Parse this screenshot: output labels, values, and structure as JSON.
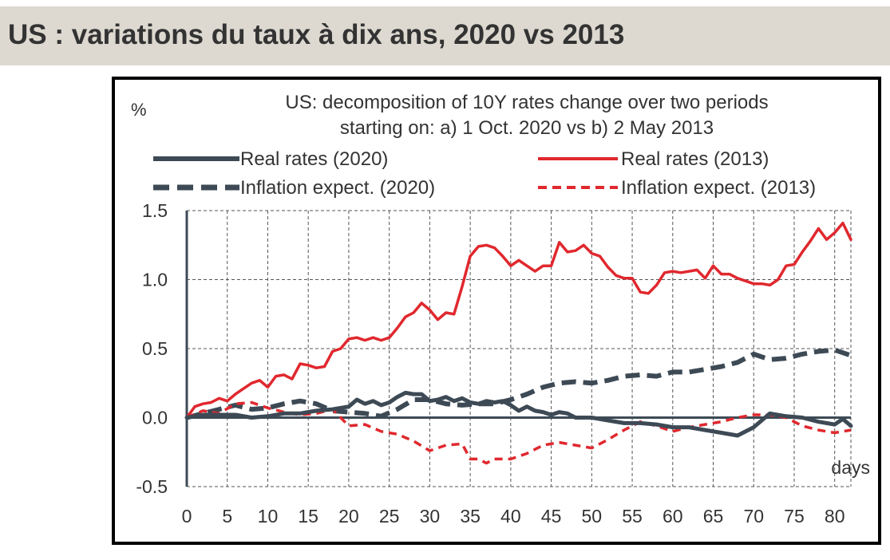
{
  "header": {
    "title": "US : variations du taux à dix ans, 2020 vs 2013"
  },
  "chart_data": {
    "type": "line",
    "title_line1": "US: decomposition of 10Y rates change over two periods",
    "title_line2": "starting on: a) 1 Oct. 2020 vs b) 2 May 2013",
    "ylabel": "%",
    "xlabel": "days",
    "xlim": [
      0,
      82
    ],
    "ylim": [
      -0.5,
      1.5
    ],
    "x_ticks": [
      0,
      5,
      10,
      15,
      20,
      25,
      30,
      35,
      40,
      45,
      50,
      55,
      60,
      65,
      70,
      75,
      80
    ],
    "y_ticks": [
      1.5,
      1.0,
      0.5,
      0.0,
      -0.5
    ],
    "y_tick_labels": [
      "1.5",
      "1.0",
      "0.5",
      "0.0",
      "-0.5"
    ],
    "grid": true,
    "legend_position": "top",
    "series": [
      {
        "name": "Real rates (2020)",
        "color": "#3d4a55",
        "style": "solid",
        "width": 5,
        "x": [
          0,
          2,
          4,
          6,
          8,
          10,
          12,
          14,
          16,
          18,
          20,
          21,
          22,
          23,
          24,
          25,
          26,
          27,
          28,
          29,
          30,
          31,
          32,
          33,
          34,
          35,
          36,
          37,
          38,
          39,
          40,
          41,
          42,
          43,
          44,
          45,
          46,
          47,
          48,
          50,
          52,
          54,
          56,
          58,
          60,
          62,
          64,
          66,
          68,
          70,
          72,
          74,
          76,
          78,
          80,
          81,
          82
        ],
        "y": [
          0.0,
          0.02,
          0.02,
          0.02,
          0.0,
          0.01,
          0.03,
          0.03,
          0.05,
          0.06,
          0.08,
          0.13,
          0.1,
          0.12,
          0.09,
          0.11,
          0.15,
          0.18,
          0.17,
          0.17,
          0.12,
          0.13,
          0.15,
          0.12,
          0.14,
          0.11,
          0.1,
          0.12,
          0.11,
          0.12,
          0.09,
          0.05,
          0.08,
          0.05,
          0.04,
          0.02,
          0.04,
          0.03,
          0.0,
          0.0,
          -0.02,
          -0.04,
          -0.04,
          -0.05,
          -0.07,
          -0.07,
          -0.09,
          -0.11,
          -0.13,
          -0.07,
          0.03,
          0.01,
          0.0,
          -0.03,
          -0.05,
          -0.01,
          -0.06
        ]
      },
      {
        "name": "Real rates (2013)",
        "color": "#e0282e",
        "style": "solid",
        "width": 3.5,
        "x": [
          0,
          1,
          2,
          3,
          4,
          5,
          6,
          7,
          8,
          9,
          10,
          11,
          12,
          13,
          14,
          15,
          16,
          17,
          18,
          19,
          20,
          21,
          22,
          23,
          24,
          25,
          26,
          27,
          28,
          29,
          30,
          31,
          32,
          33,
          34,
          35,
          36,
          37,
          38,
          39,
          40,
          41,
          42,
          43,
          44,
          45,
          46,
          47,
          48,
          49,
          50,
          51,
          52,
          53,
          54,
          55,
          56,
          57,
          58,
          59,
          60,
          61,
          62,
          63,
          64,
          65,
          66,
          67,
          68,
          69,
          70,
          71,
          72,
          73,
          74,
          75,
          76,
          77,
          78,
          79,
          80,
          81,
          82
        ],
        "y": [
          0.0,
          0.08,
          0.1,
          0.11,
          0.14,
          0.12,
          0.17,
          0.21,
          0.25,
          0.27,
          0.22,
          0.3,
          0.31,
          0.28,
          0.39,
          0.38,
          0.36,
          0.37,
          0.48,
          0.5,
          0.57,
          0.58,
          0.56,
          0.58,
          0.56,
          0.58,
          0.65,
          0.73,
          0.76,
          0.83,
          0.78,
          0.71,
          0.76,
          0.75,
          0.95,
          1.17,
          1.24,
          1.25,
          1.23,
          1.17,
          1.1,
          1.14,
          1.1,
          1.06,
          1.1,
          1.1,
          1.27,
          1.2,
          1.21,
          1.25,
          1.19,
          1.17,
          1.09,
          1.03,
          1.01,
          1.01,
          0.91,
          0.9,
          0.96,
          1.05,
          1.06,
          1.05,
          1.06,
          1.07,
          1.01,
          1.1,
          1.04,
          1.04,
          1.01,
          0.99,
          0.97,
          0.97,
          0.96,
          1.0,
          1.1,
          1.11,
          1.2,
          1.28,
          1.37,
          1.29,
          1.34,
          1.41,
          1.29
        ]
      },
      {
        "name": "Inflation expect. (2020)",
        "color": "#3d4a55",
        "style": "dashed",
        "width": 6,
        "x": [
          0,
          2,
          4,
          6,
          8,
          10,
          12,
          14,
          16,
          18,
          20,
          22,
          24,
          26,
          28,
          30,
          32,
          34,
          36,
          38,
          40,
          42,
          44,
          46,
          48,
          50,
          52,
          54,
          56,
          58,
          60,
          62,
          64,
          66,
          68,
          70,
          72,
          74,
          76,
          78,
          80,
          82
        ],
        "y": [
          0.0,
          0.03,
          0.06,
          0.09,
          0.06,
          0.07,
          0.1,
          0.12,
          0.1,
          0.05,
          0.04,
          0.03,
          0.01,
          0.06,
          0.13,
          0.13,
          0.1,
          0.09,
          0.1,
          0.1,
          0.13,
          0.17,
          0.22,
          0.25,
          0.26,
          0.25,
          0.27,
          0.3,
          0.31,
          0.3,
          0.33,
          0.33,
          0.35,
          0.37,
          0.4,
          0.46,
          0.42,
          0.43,
          0.46,
          0.48,
          0.49,
          0.45
        ]
      },
      {
        "name": "Inflation expect. (2013)",
        "color": "#e0282e",
        "style": "dashed",
        "width": 3.5,
        "x": [
          0,
          2,
          4,
          6,
          8,
          10,
          12,
          14,
          16,
          18,
          20,
          22,
          24,
          26,
          28,
          30,
          32,
          34,
          35,
          36,
          37,
          38,
          40,
          42,
          44,
          46,
          48,
          50,
          52,
          54,
          56,
          58,
          60,
          62,
          64,
          66,
          68,
          70,
          72,
          74,
          76,
          78,
          80,
          82
        ],
        "y": [
          0.0,
          0.05,
          0.03,
          0.1,
          0.11,
          0.07,
          0.04,
          0.02,
          0.03,
          0.06,
          -0.06,
          -0.05,
          -0.1,
          -0.12,
          -0.17,
          -0.24,
          -0.2,
          -0.19,
          -0.3,
          -0.3,
          -0.33,
          -0.3,
          -0.3,
          -0.26,
          -0.2,
          -0.18,
          -0.2,
          -0.22,
          -0.16,
          -0.09,
          -0.03,
          -0.06,
          -0.1,
          -0.07,
          -0.05,
          -0.03,
          0.0,
          0.02,
          0.02,
          0.0,
          -0.06,
          -0.09,
          -0.11,
          -0.09
        ]
      }
    ]
  }
}
